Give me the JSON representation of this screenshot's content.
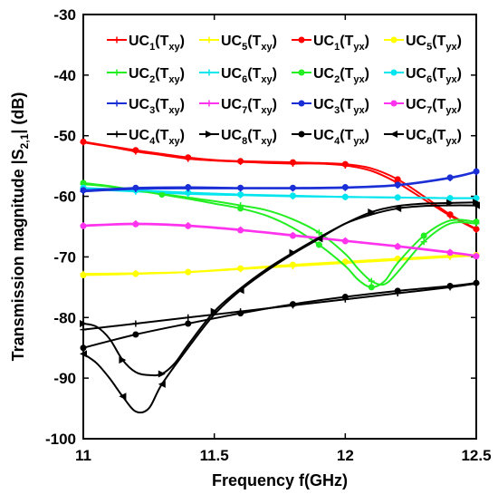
{
  "chart_data": {
    "type": "line",
    "xlabel": "Frequency f(GHz)",
    "ylabel": "Transmission magnitude",
    "ylabel_symbol": {
      "pre": "|S",
      "sub": "2,1",
      "post": "| (dB)"
    },
    "xlim": [
      11,
      12.5
    ],
    "ylim": [
      -100,
      -30
    ],
    "x_ticks": [
      11,
      11.5,
      12,
      12.5
    ],
    "x_tick_labels": [
      "11",
      "11.5",
      "12",
      "12.5"
    ],
    "y_ticks": [
      -100,
      -90,
      -80,
      -70,
      -60,
      -50,
      -40,
      -30
    ],
    "y_tick_labels": [
      "-100",
      "-90",
      "-80",
      "-70",
      "-60",
      "-50",
      "-40",
      "-30"
    ],
    "grid": false,
    "legend_position": "top-right",
    "series": [
      {
        "label": {
          "uc": "UC",
          "n": "1",
          "t": "xy"
        },
        "color": "#ff0000",
        "marker": "plus",
        "x": [
          11,
          11.1,
          11.2,
          11.3,
          11.4,
          11.5,
          11.6,
          11.7,
          11.8,
          11.9,
          12,
          12.1,
          12.2,
          12.3,
          12.4,
          12.5
        ],
        "y": [
          -51.1,
          -51.8,
          -52.6,
          -53.2,
          -53.8,
          -54.1,
          -54.3,
          -54.5,
          -54.6,
          -54.6,
          -54.9,
          -55.8,
          -57.8,
          -60.5,
          -63.2,
          -65.5
        ]
      },
      {
        "label": {
          "uc": "UC",
          "n": "5",
          "t": "xy"
        },
        "color": "#ffff00",
        "marker": "plus",
        "x": [
          11,
          11.2,
          11.4,
          11.6,
          11.8,
          12,
          12.2,
          12.4,
          12.5
        ],
        "y": [
          -72.8,
          -72.7,
          -72.5,
          -72.0,
          -71.5,
          -71.0,
          -70.5,
          -70.0,
          -69.8
        ]
      },
      {
        "label": {
          "uc": "UC",
          "n": "1",
          "t": "yx"
        },
        "color": "#ff0000",
        "marker": "dot",
        "x": [
          11,
          11.1,
          11.2,
          11.3,
          11.4,
          11.5,
          11.6,
          11.7,
          11.8,
          11.9,
          12,
          12.1,
          12.2,
          12.3,
          12.4,
          12.5
        ],
        "y": [
          -51.0,
          -51.7,
          -52.4,
          -53.0,
          -53.6,
          -54.0,
          -54.2,
          -54.3,
          -54.4,
          -54.5,
          -54.7,
          -55.4,
          -57.2,
          -60.0,
          -63.0,
          -65.4
        ]
      },
      {
        "label": {
          "uc": "UC",
          "n": "5",
          "t": "yx"
        },
        "color": "#ffff00",
        "marker": "dot",
        "x": [
          11,
          11.2,
          11.4,
          11.6,
          11.8,
          12,
          12.2,
          12.4,
          12.5
        ],
        "y": [
          -73.0,
          -72.8,
          -72.5,
          -71.9,
          -71.3,
          -70.8,
          -70.3,
          -69.8,
          -69.7
        ]
      },
      {
        "label": {
          "uc": "UC",
          "n": "2",
          "t": "xy"
        },
        "color": "#22ee22",
        "marker": "plus",
        "x": [
          11,
          11.1,
          11.2,
          11.3,
          11.4,
          11.5,
          11.6,
          11.7,
          11.8,
          11.9,
          12,
          12.05,
          12.1,
          12.15,
          12.2,
          12.3,
          12.4,
          12.5
        ],
        "y": [
          -58.0,
          -58.4,
          -59.0,
          -59.6,
          -60.2,
          -60.8,
          -61.5,
          -62.3,
          -63.8,
          -66.0,
          -69.5,
          -72.0,
          -74.0,
          -74.5,
          -72.5,
          -67.5,
          -64.5,
          -64.5
        ]
      },
      {
        "label": {
          "uc": "UC",
          "n": "6",
          "t": "xy"
        },
        "color": "#00e5ee",
        "marker": "plus",
        "x": [
          11,
          11.2,
          11.4,
          11.6,
          11.8,
          12,
          12.2,
          12.4,
          12.5
        ],
        "y": [
          -58.8,
          -59.2,
          -59.6,
          -59.8,
          -60.0,
          -60.1,
          -60.2,
          -60.3,
          -60.3
        ]
      },
      {
        "label": {
          "uc": "UC",
          "n": "2",
          "t": "yx"
        },
        "color": "#22ee22",
        "marker": "dot",
        "x": [
          11,
          11.1,
          11.2,
          11.3,
          11.4,
          11.5,
          11.6,
          11.7,
          11.8,
          11.9,
          12,
          12.05,
          12.1,
          12.15,
          12.2,
          12.3,
          12.4,
          12.5
        ],
        "y": [
          -57.8,
          -58.3,
          -59.0,
          -59.7,
          -60.4,
          -61.2,
          -62.0,
          -63.2,
          -65.2,
          -68.0,
          -71.5,
          -73.8,
          -75.0,
          -74.0,
          -71.0,
          -66.5,
          -64.0,
          -64.2
        ]
      },
      {
        "label": {
          "uc": "UC",
          "n": "6",
          "t": "yx"
        },
        "color": "#00e5ee",
        "marker": "dot",
        "x": [
          11,
          11.2,
          11.4,
          11.6,
          11.8,
          12,
          12.2,
          12.4,
          12.5
        ],
        "y": [
          -58.6,
          -59.0,
          -59.4,
          -59.7,
          -59.9,
          -60.1,
          -60.2,
          -60.3,
          -60.3
        ]
      },
      {
        "label": {
          "uc": "UC",
          "n": "3",
          "t": "xy"
        },
        "color": "#1b2fd6",
        "marker": "plus",
        "x": [
          11,
          11.2,
          11.4,
          11.6,
          11.8,
          12,
          12.2,
          12.4,
          12.5
        ],
        "y": [
          -59.2,
          -58.8,
          -58.7,
          -58.7,
          -58.7,
          -58.6,
          -58.2,
          -57.0,
          -56.0
        ]
      },
      {
        "label": {
          "uc": "UC",
          "n": "7",
          "t": "xy"
        },
        "color": "#ff33ee",
        "marker": "plus",
        "x": [
          11,
          11.2,
          11.4,
          11.6,
          11.8,
          12,
          12.2,
          12.4,
          12.5
        ],
        "y": [
          -64.8,
          -64.5,
          -64.8,
          -65.5,
          -66.4,
          -67.3,
          -68.2,
          -69.2,
          -69.8
        ]
      },
      {
        "label": {
          "uc": "UC",
          "n": "3",
          "t": "yx"
        },
        "color": "#1b2fd6",
        "marker": "dot",
        "x": [
          11,
          11.2,
          11.4,
          11.6,
          11.8,
          12,
          12.2,
          12.4,
          12.5
        ],
        "y": [
          -59.0,
          -58.6,
          -58.5,
          -58.6,
          -58.6,
          -58.5,
          -58.1,
          -56.9,
          -55.9
        ]
      },
      {
        "label": {
          "uc": "UC",
          "n": "7",
          "t": "yx"
        },
        "color": "#ff33ee",
        "marker": "dot",
        "x": [
          11,
          11.2,
          11.4,
          11.6,
          11.8,
          12,
          12.2,
          12.4,
          12.5
        ],
        "y": [
          -64.9,
          -64.6,
          -64.9,
          -65.6,
          -66.5,
          -67.4,
          -68.3,
          -69.3,
          -69.9
        ]
      },
      {
        "label": {
          "uc": "UC",
          "n": "4",
          "t": "xy"
        },
        "color": "#000000",
        "marker": "plus",
        "x": [
          11,
          11.2,
          11.4,
          11.6,
          11.8,
          12,
          12.2,
          12.4,
          12.5
        ],
        "y": [
          -82.0,
          -81.0,
          -80.0,
          -79.0,
          -78.0,
          -77.0,
          -76.0,
          -75.0,
          -74.4
        ]
      },
      {
        "label": {
          "uc": "UC",
          "n": "8",
          "t": "xy"
        },
        "color": "#000000",
        "marker": "triangle-right",
        "x": [
          11,
          11.05,
          11.1,
          11.15,
          11.2,
          11.25,
          11.3,
          11.35,
          11.4,
          11.5,
          11.6,
          11.7,
          11.8,
          11.9,
          12,
          12.1,
          12.2,
          12.3,
          12.4,
          12.5
        ],
        "y": [
          -81.0,
          -81.5,
          -83.5,
          -87.0,
          -89.0,
          -89.5,
          -89.3,
          -87.5,
          -84.5,
          -79.0,
          -75.2,
          -72.0,
          -69.3,
          -66.8,
          -64.5,
          -62.6,
          -61.6,
          -61.2,
          -61.1,
          -61.0
        ]
      },
      {
        "label": {
          "uc": "UC",
          "n": "4",
          "t": "yx"
        },
        "color": "#000000",
        "marker": "dot",
        "x": [
          11,
          11.2,
          11.4,
          11.6,
          11.8,
          12,
          12.2,
          12.4,
          12.5
        ],
        "y": [
          -85.0,
          -82.8,
          -81.0,
          -79.3,
          -77.8,
          -76.6,
          -75.6,
          -74.8,
          -74.3
        ]
      },
      {
        "label": {
          "uc": "UC",
          "n": "8",
          "t": "yx"
        },
        "color": "#000000",
        "marker": "triangle-left",
        "x": [
          11,
          11.05,
          11.1,
          11.15,
          11.2,
          11.25,
          11.3,
          11.4,
          11.5,
          11.6,
          11.7,
          11.8,
          11.9,
          12,
          12.1,
          12.2,
          12.3,
          12.4,
          12.5
        ],
        "y": [
          -86.0,
          -87.5,
          -90.0,
          -93.0,
          -95.5,
          -95.0,
          -91.0,
          -85.0,
          -79.5,
          -75.5,
          -72.3,
          -69.5,
          -67.0,
          -64.5,
          -63.0,
          -62.0,
          -61.6,
          -61.5,
          -61.5
        ]
      }
    ]
  }
}
